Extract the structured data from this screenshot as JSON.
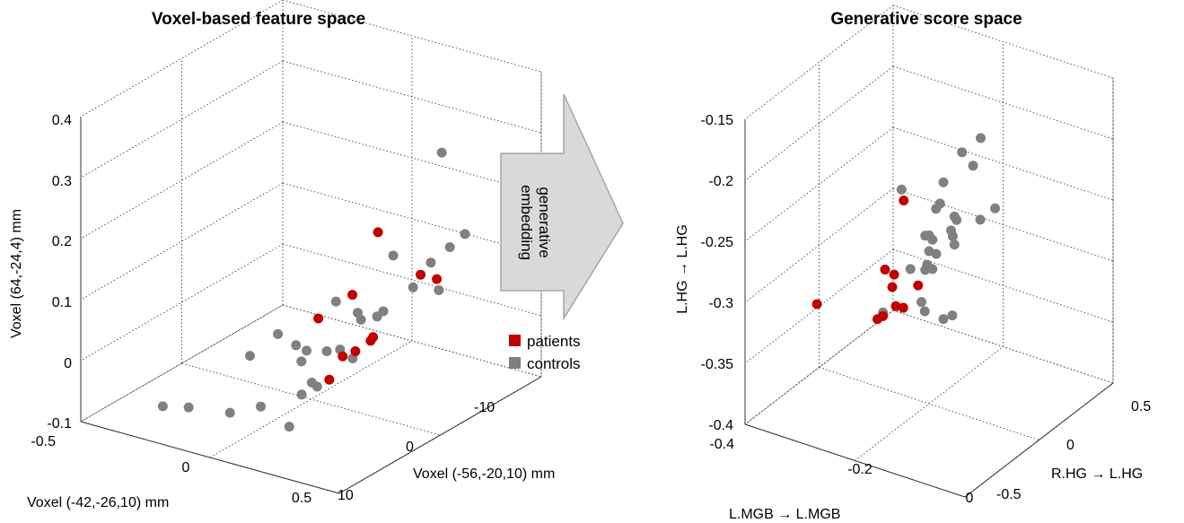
{
  "arrow": {
    "lines": [
      "generative",
      "embedding"
    ],
    "fill": "#d9d9d9",
    "stroke": "#a6a6a6"
  },
  "legend": {
    "items": [
      {
        "label": "patients",
        "color": "#c00000"
      },
      {
        "label": "controls",
        "color": "#808080"
      }
    ]
  },
  "chart_data": [
    {
      "type": "scatter3d",
      "title": "Voxel-based feature space",
      "xlabel": "Voxel  (-42,-26,10)  mm",
      "ylabel": "Voxel  (-56,-20,10)  mm",
      "zlabel": "Voxel  (64,-24,4)  mm",
      "x_ticks": [
        "-0.5",
        "0",
        "0.5"
      ],
      "y_ticks": [
        "-10",
        "0",
        "10"
      ],
      "z_ticks": [
        "0.4",
        "0.3",
        "0.2",
        "0.1",
        "0",
        "-0.1"
      ],
      "xlim": [
        -0.5,
        0.5
      ],
      "ylim": [
        -10,
        10
      ],
      "zlim": [
        -0.1,
        0.4
      ],
      "grid": true,
      "series": [
        {
          "name": "patients",
          "color": "#c00000",
          "points": [
            {
              "x": 0.22,
              "y": -1.0,
              "z": 0.19
            },
            {
              "x": 0.42,
              "y": -1.7,
              "z": 0.13
            },
            {
              "x": 0.33,
              "y": -2.4,
              "z": 0.12
            },
            {
              "x": 0.16,
              "y": 0.0,
              "z": 0.09
            },
            {
              "x": 0.04,
              "y": 0.3,
              "z": 0.04
            },
            {
              "x": 0.24,
              "y": 0.0,
              "z": 0.03
            },
            {
              "x": 0.25,
              "y": 0.5,
              "z": 0.03
            },
            {
              "x": 0.23,
              "y": 1.5,
              "z": 0.02
            },
            {
              "x": 0.22,
              "y": 2.5,
              "z": 0.02
            },
            {
              "x": 0.18,
              "y": 2.8,
              "z": -0.02
            }
          ]
        },
        {
          "name": "controls",
          "color": "#808080",
          "points": [
            {
              "x": 0.33,
              "y": -4.5,
              "z": 0.3
            },
            {
              "x": 0.4,
              "y": -5.0,
              "z": 0.17
            },
            {
              "x": 0.42,
              "y": -3.0,
              "z": 0.17
            },
            {
              "x": 0.44,
              "y": -0.6,
              "z": 0.17
            },
            {
              "x": 0.31,
              "y": -0.2,
              "z": 0.17
            },
            {
              "x": 0.42,
              "y": -1.9,
              "z": 0.11
            },
            {
              "x": 0.34,
              "y": -1.4,
              "z": 0.11
            },
            {
              "x": 0.26,
              "y": -0.5,
              "z": 0.07
            },
            {
              "x": 0.2,
              "y": 0.5,
              "z": 0.07
            },
            {
              "x": 0.12,
              "y": 0.6,
              "z": 0.08
            },
            {
              "x": 0.24,
              "y": 1.2,
              "z": 0.07
            },
            {
              "x": 0.24,
              "y": -0.4,
              "z": 0.06
            },
            {
              "x": 0.1,
              "y": 3.0,
              "z": 0.02
            },
            {
              "x": 0.21,
              "y": 2.5,
              "z": 0.03
            },
            {
              "x": -0.05,
              "y": 2.0,
              "z": 0.02
            },
            {
              "x": 0.02,
              "y": 2.0,
              "z": 0.01
            },
            {
              "x": 0.1,
              "y": 1.0,
              "z": 0.0
            },
            {
              "x": 0.2,
              "y": 1.0,
              "z": 0.0
            },
            {
              "x": 0.08,
              "y": 3.0,
              "z": 0.0
            },
            {
              "x": -0.08,
              "y": 4.0,
              "z": 0.0
            },
            {
              "x": 0.04,
              "y": 6.0,
              "z": -0.05
            },
            {
              "x": 0.12,
              "y": 3.0,
              "z": -0.03
            },
            {
              "x": 0.12,
              "y": 4.0,
              "z": -0.04
            },
            {
              "x": 0.18,
              "y": 4.0,
              "z": -0.02
            },
            {
              "x": -0.04,
              "y": 7.0,
              "z": -0.06
            },
            {
              "x": -0.3,
              "y": 7.0,
              "z": -0.08
            },
            {
              "x": -0.2,
              "y": 7.0,
              "z": -0.07
            },
            {
              "x": 0.15,
              "y": 6.0,
              "z": -0.07
            }
          ]
        }
      ]
    },
    {
      "type": "scatter3d",
      "title": "Generative score space",
      "xlabel": "L.MGB → L.MGB",
      "ylabel": "R.HG → L.HG",
      "zlabel": "L.HG → L.HG",
      "x_ticks": [
        "-0.4",
        "-0.2",
        "0"
      ],
      "y_ticks": [
        "0.5",
        "0",
        "-0.5"
      ],
      "z_ticks": [
        "-0.15",
        "-0.2",
        "-0.25",
        "-0.3",
        "-0.35",
        "-0.4"
      ],
      "xlim": [
        -0.4,
        0
      ],
      "ylim": [
        -0.5,
        0.5
      ],
      "zlim": [
        -0.4,
        -0.15
      ],
      "grid": true,
      "series": [
        {
          "name": "patients",
          "color": "#c00000",
          "points": [
            {
              "x": -0.3,
              "y": -0.2,
              "z": -0.267
            },
            {
              "x": -0.25,
              "y": 0.05,
              "z": -0.297
            },
            {
              "x": -0.24,
              "y": 0.1,
              "z": -0.301
            },
            {
              "x": -0.22,
              "y": 0.0,
              "z": -0.306
            },
            {
              "x": -0.22,
              "y": 0.15,
              "z": -0.309
            },
            {
              "x": -0.23,
              "y": 0.2,
              "z": -0.314
            },
            {
              "x": -0.28,
              "y": 0.0,
              "z": -0.302
            },
            {
              "x": -0.22,
              "y": 0.1,
              "z": -0.315
            },
            {
              "x": -0.24,
              "y": 0.2,
              "z": -0.318
            },
            {
              "x": -0.35,
              "y": 0.2,
              "z": -0.322
            }
          ]
        },
        {
          "name": "controls",
          "color": "#808080",
          "points": [
            {
              "x": -0.14,
              "y": 0.0,
              "z": -0.185
            },
            {
              "x": -0.12,
              "y": 0.0,
              "z": -0.193
            },
            {
              "x": -0.12,
              "y": 0.2,
              "z": -0.188
            },
            {
              "x": -0.12,
              "y": 0.25,
              "z": -0.205
            },
            {
              "x": -0.16,
              "y": -0.2,
              "z": -0.195
            },
            {
              "x": -0.1,
              "y": 0.2,
              "z": -0.213
            },
            {
              "x": -0.08,
              "y": 0.0,
              "z": -0.222
            },
            {
              "x": -0.08,
              "y": 0.1,
              "z": -0.222
            },
            {
              "x": -0.18,
              "y": 0.0,
              "z": -0.233
            },
            {
              "x": -0.14,
              "y": 0.2,
              "z": -0.238
            },
            {
              "x": -0.1,
              "y": 0.2,
              "z": -0.236
            },
            {
              "x": -0.25,
              "y": 0.0,
              "z": -0.232
            },
            {
              "x": -0.15,
              "y": 0.0,
              "z": -0.242
            },
            {
              "x": -0.13,
              "y": 0.1,
              "z": -0.243
            },
            {
              "x": -0.16,
              "y": 0.0,
              "z": -0.252
            },
            {
              "x": -0.18,
              "y": 0.1,
              "z": -0.25
            },
            {
              "x": -0.2,
              "y": 0.0,
              "z": -0.262
            },
            {
              "x": -0.16,
              "y": 0.1,
              "z": -0.262
            },
            {
              "x": -0.14,
              "y": 0.2,
              "z": -0.262
            },
            {
              "x": -0.05,
              "y": 0.4,
              "z": -0.268
            },
            {
              "x": -0.18,
              "y": 0.2,
              "z": -0.268
            },
            {
              "x": -0.1,
              "y": 0.4,
              "z": -0.272
            },
            {
              "x": -0.2,
              "y": 0.0,
              "z": -0.275
            },
            {
              "x": -0.18,
              "y": 0.1,
              "z": -0.278
            },
            {
              "x": -0.19,
              "y": 0.05,
              "z": -0.28
            },
            {
              "x": -0.12,
              "y": 0.2,
              "z": -0.3
            },
            {
              "x": -0.16,
              "y": 0.2,
              "z": -0.292
            },
            {
              "x": -0.23,
              "y": 0.2,
              "z": -0.311
            }
          ]
        }
      ]
    }
  ]
}
